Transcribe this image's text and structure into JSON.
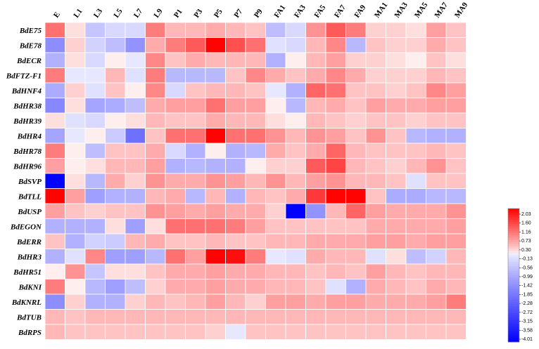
{
  "chart_data": {
    "type": "heatmap",
    "columns": [
      "E",
      "L1",
      "L3",
      "L5",
      "L7",
      "L9",
      "P1",
      "P3",
      "P5",
      "P7",
      "P9",
      "FA1",
      "FA3",
      "FA5",
      "FA7",
      "FA9",
      "MA1",
      "MA3",
      "MA5",
      "MA7",
      "MA9"
    ],
    "rows": [
      "BdE75",
      "BdE78",
      "BdECR",
      "BdFTZ-F1",
      "BdHNF4",
      "BdHR38",
      "BdHR39",
      "BdHR4",
      "BdHR78",
      "BdHR96",
      "BdSVP",
      "BdTLL",
      "BdUSP",
      "BdEGON",
      "BdERR",
      "BdHR3",
      "BdHR51",
      "BdKNI",
      "BdKNRL",
      "BdTUB",
      "BdRPS"
    ],
    "values": [
      [
        1.0,
        0.1,
        -0.6,
        -0.3,
        -0.3,
        0.9,
        0.4,
        0.4,
        0.5,
        0.4,
        0.3,
        -0.7,
        -0.3,
        0.7,
        1.2,
        0.9,
        0.2,
        0.2,
        0.1,
        0.6,
        0.3
      ],
      [
        -1.5,
        0.2,
        -0.4,
        -0.7,
        -1.4,
        0.5,
        0.9,
        1.2,
        2.0,
        1.3,
        1.0,
        -0.2,
        -0.3,
        0.4,
        0.8,
        -0.8,
        0.3,
        0.2,
        0.2,
        0.5,
        0.3
      ],
      [
        -0.9,
        0.1,
        -0.3,
        0.0,
        -0.1,
        0.8,
        0.3,
        0.5,
        0.4,
        0.4,
        0.4,
        -0.9,
        0.0,
        0.4,
        0.6,
        0.2,
        0.2,
        0.1,
        0.0,
        0.3,
        0.1
      ],
      [
        0.9,
        -0.1,
        -0.1,
        0.4,
        -0.2,
        0.9,
        -0.8,
        -0.8,
        -0.8,
        0.3,
        0.8,
        0.5,
        0.3,
        0.5,
        0.8,
        0.5,
        0.2,
        0.2,
        0.2,
        0.4,
        0.3
      ],
      [
        -1.0,
        0.2,
        -0.2,
        0.3,
        0.0,
        0.8,
        -0.3,
        0.3,
        0.4,
        0.4,
        0.3,
        -0.1,
        -0.9,
        1.1,
        1.0,
        0.3,
        0.3,
        0.2,
        0.3,
        0.8,
        0.6
      ],
      [
        -1.6,
        0.1,
        -1.1,
        -1.0,
        -0.7,
        0.5,
        0.6,
        0.6,
        1.0,
        0.6,
        0.6,
        0.0,
        -0.8,
        0.4,
        0.5,
        0.3,
        0.6,
        0.5,
        0.5,
        0.6,
        0.6
      ],
      [
        0.1,
        -0.2,
        -0.3,
        0.0,
        0.1,
        0.4,
        0.3,
        0.3,
        0.5,
        0.4,
        0.4,
        0.1,
        0.0,
        0.4,
        0.3,
        0.2,
        0.3,
        0.3,
        0.2,
        0.3,
        0.3
      ],
      [
        -1.1,
        -0.1,
        0.0,
        -0.5,
        -2.0,
        0.3,
        1.0,
        1.0,
        2.0,
        1.0,
        1.0,
        0.7,
        0.4,
        0.7,
        0.6,
        0.3,
        0.7,
        0.3,
        -0.8,
        -0.9,
        -0.9
      ],
      [
        0.9,
        0.0,
        -0.7,
        0.3,
        0.3,
        0.5,
        -0.3,
        -0.9,
        0.0,
        -0.9,
        -0.8,
        0.5,
        0.3,
        0.5,
        1.1,
        0.4,
        0.3,
        0.3,
        0.3,
        0.4,
        0.3
      ],
      [
        0.6,
        0.0,
        0.1,
        0.4,
        0.4,
        0.6,
        -0.9,
        -0.8,
        -0.9,
        -0.9,
        0.0,
        0.2,
        0.2,
        1.2,
        1.4,
        0.4,
        0.3,
        0.2,
        0.4,
        0.7,
        0.3
      ],
      [
        -4.0,
        0.1,
        -0.8,
        0.5,
        0.2,
        0.7,
        0.5,
        0.5,
        0.7,
        0.6,
        0.4,
        0.7,
        0.4,
        0.6,
        0.7,
        0.4,
        0.4,
        0.3,
        -0.2,
        0.3,
        0.3
      ],
      [
        2.0,
        0.6,
        -1.2,
        -0.9,
        -0.9,
        0.4,
        0.5,
        -0.8,
        0.4,
        -0.9,
        0.4,
        0.3,
        0.5,
        1.5,
        2.0,
        2.0,
        0.3,
        -1.0,
        -1.0,
        -0.8,
        -0.8
      ],
      [
        0.6,
        0.3,
        0.2,
        0.3,
        0.3,
        0.7,
        0.6,
        0.5,
        0.6,
        0.5,
        0.5,
        0.2,
        -4.0,
        -1.4,
        0.4,
        1.1,
        0.6,
        0.5,
        0.5,
        0.5,
        0.7
      ],
      [
        -0.9,
        -0.9,
        -0.9,
        0.1,
        -1.2,
        0.1,
        1.0,
        1.0,
        1.0,
        0.9,
        0.6,
        0.3,
        0.3,
        0.3,
        0.3,
        0.3,
        0.5,
        0.5,
        0.5,
        0.5,
        0.6
      ],
      [
        0.3,
        -0.9,
        -0.4,
        -0.5,
        0.4,
        0.5,
        0.3,
        0.3,
        0.4,
        0.3,
        0.3,
        0.4,
        0.4,
        0.5,
        0.5,
        0.5,
        0.6,
        0.6,
        0.5,
        0.6,
        0.6
      ],
      [
        -0.9,
        -0.2,
        0.8,
        -1.2,
        -1.2,
        -0.8,
        1.0,
        0.6,
        2.0,
        1.9,
        0.9,
        -0.1,
        -0.2,
        0.5,
        0.4,
        0.4,
        -0.2,
        0.1,
        -0.7,
        -0.4,
        0.4
      ],
      [
        0.0,
        0.7,
        -0.6,
        0.1,
        0.1,
        0.3,
        0.5,
        0.5,
        0.6,
        0.5,
        0.5,
        0.4,
        0.4,
        0.3,
        0.4,
        0.3,
        0.6,
        0.4,
        0.3,
        0.4,
        0.4
      ],
      [
        0.9,
        0.0,
        -0.8,
        -1.2,
        -0.7,
        0.2,
        0.5,
        0.5,
        0.6,
        0.5,
        0.5,
        0.4,
        0.4,
        0.3,
        -0.2,
        -0.9,
        0.5,
        0.4,
        0.3,
        0.5,
        0.4
      ],
      [
        -1.5,
        0.2,
        -0.9,
        -0.9,
        0.2,
        0.4,
        0.3,
        0.4,
        0.6,
        0.4,
        0.2,
        0.6,
        0.6,
        0.5,
        0.6,
        0.6,
        0.5,
        0.5,
        0.5,
        0.6,
        0.9
      ],
      [
        0.4,
        0.3,
        0.4,
        0.4,
        0.4,
        0.4,
        0.4,
        0.4,
        0.4,
        0.4,
        0.4,
        0.4,
        0.4,
        0.4,
        0.4,
        0.4,
        0.4,
        0.4,
        0.4,
        0.4,
        0.4
      ],
      [
        0.4,
        0.3,
        0.3,
        0.3,
        0.3,
        0.3,
        0.3,
        0.3,
        0.2,
        -0.1,
        0.3,
        0.3,
        0.3,
        0.3,
        0.3,
        0.3,
        0.3,
        0.3,
        0.3,
        0.3,
        0.3
      ]
    ],
    "legend": {
      "ticks": [
        "2.03",
        "1.60",
        "1.16",
        "0.73",
        "0.30",
        "-0.13",
        "-0.56",
        "-0.99",
        "-1.42",
        "-1.85",
        "-2.28",
        "-2.72",
        "-3.15",
        "-3.58",
        "-4.01"
      ],
      "max": 2.03,
      "min": -4.01,
      "placement": "right"
    },
    "colors": {
      "positive": "#ff0000",
      "negative": "#0000ff",
      "neutral": "#ffffff",
      "grid": "#ffffff"
    }
  }
}
